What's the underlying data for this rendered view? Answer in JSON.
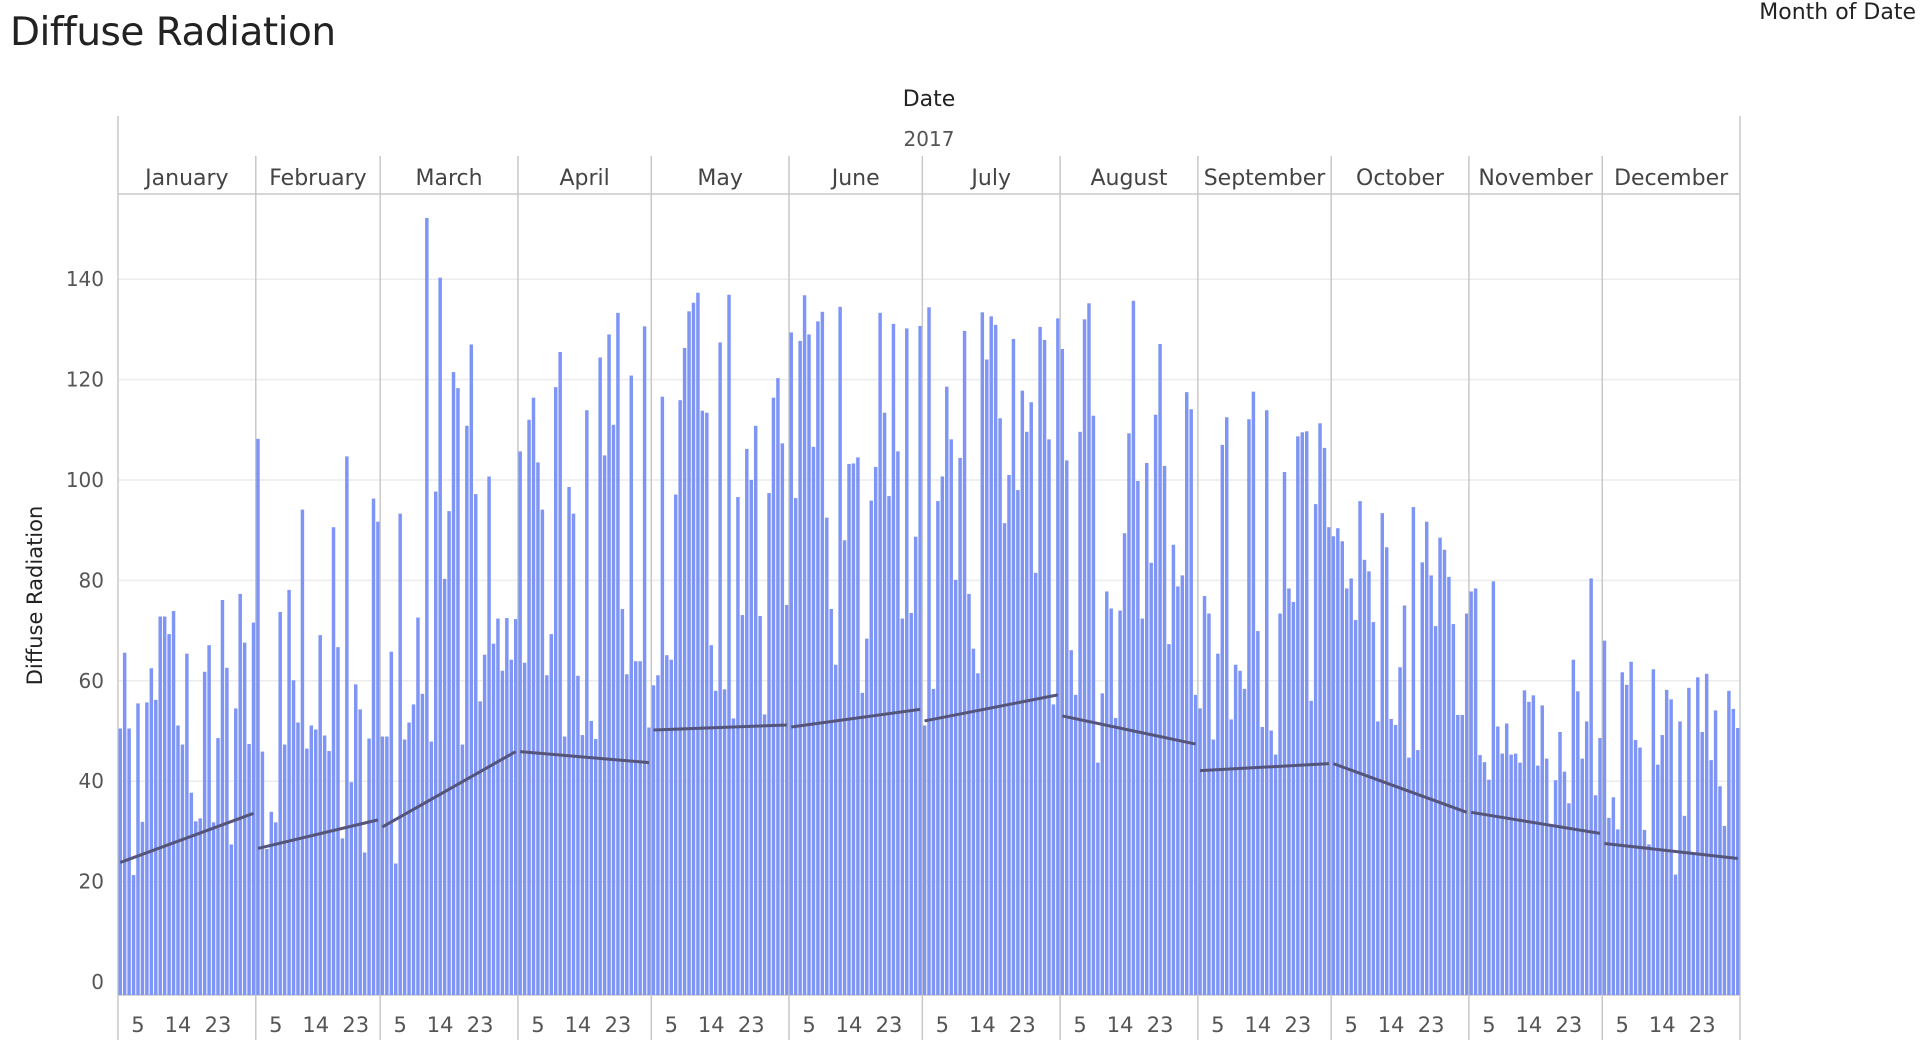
{
  "title": "Diffuse Radiation",
  "legend_title": "Month of Date",
  "chart_data": {
    "type": "bar",
    "title": "Diffuse Radiation",
    "xlabel": "Date",
    "ylabel": "Diffuse Radiation",
    "year_label": "2017",
    "ylim": [
      0,
      155
    ],
    "yticks": [
      0,
      20,
      40,
      60,
      80,
      100,
      120,
      140
    ],
    "xtick_days": [
      5,
      14,
      23
    ],
    "xtick_labels": [
      "5",
      "14",
      "23"
    ],
    "grid": true,
    "bar_color": "#7f95f5",
    "trend_color": "#55557a",
    "months": [
      {
        "name": "January",
        "days": 31,
        "values": [
          50.5,
          65.6,
          50.5,
          21.3,
          55.5,
          31.9,
          55.7,
          62.5,
          56.2,
          72.8,
          72.8,
          69.3,
          73.9,
          51.1,
          47.3,
          65.4,
          37.7,
          32.0,
          32.6,
          61.8,
          67.1,
          31.8,
          48.6,
          76.1,
          62.6,
          27.4,
          54.5,
          77.3,
          67.6,
          47.4,
          71.6
        ],
        "trend": [
          23.8,
          33.6
        ]
      },
      {
        "name": "February",
        "days": 28,
        "values": [
          108.2,
          45.9,
          26.5,
          33.9,
          31.8,
          73.7,
          47.3,
          78.1,
          60.1,
          51.7,
          94.1,
          46.5,
          51.1,
          50.3,
          69.1,
          49.1,
          46.0,
          90.6,
          66.7,
          28.6,
          104.7,
          39.8,
          59.3,
          54.3,
          25.8,
          48.5,
          96.3,
          91.7
        ],
        "trend": [
          26.6,
          32.3
        ]
      },
      {
        "name": "March",
        "days": 31,
        "values": [
          48.9,
          48.9,
          65.8,
          23.6,
          93.3,
          48.3,
          51.7,
          55.3,
          72.6,
          57.4,
          152.2,
          47.9,
          97.7,
          140.3,
          80.3,
          93.8,
          121.5,
          118.3,
          47.3,
          110.8,
          127.0,
          97.2,
          55.9,
          65.2,
          100.7,
          67.4,
          72.4,
          62.0,
          72.5,
          64.2,
          72.3
        ],
        "trend": [
          30.9,
          45.9
        ]
      },
      {
        "name": "April",
        "days": 30,
        "values": [
          105.7,
          63.6,
          112.0,
          116.4,
          103.5,
          94.1,
          61.1,
          69.3,
          118.5,
          125.5,
          48.9,
          98.6,
          93.3,
          61.0,
          49.2,
          113.9,
          52.0,
          48.4,
          124.4,
          104.9,
          129.0,
          111.0,
          133.3,
          74.3,
          61.3,
          120.8,
          63.9,
          63.9,
          130.6,
          50.7
        ],
        "trend": [
          45.9,
          43.7
        ]
      },
      {
        "name": "May",
        "days": 31,
        "values": [
          59.1,
          61.1,
          116.6,
          65.1,
          64.2,
          97.1,
          115.9,
          126.3,
          133.6,
          135.3,
          137.3,
          113.8,
          113.4,
          67.1,
          58.0,
          127.4,
          58.3,
          136.9,
          52.5,
          96.6,
          73.1,
          106.2,
          100.0,
          110.8,
          72.9,
          53.3,
          97.4,
          116.4,
          120.3,
          107.3,
          75.1
        ],
        "trend": [
          50.2,
          51.2
        ]
      },
      {
        "name": "June",
        "days": 30,
        "values": [
          129.4,
          96.4,
          127.7,
          136.8,
          129.0,
          106.6,
          131.6,
          133.5,
          92.5,
          74.3,
          63.2,
          134.5,
          88.0,
          103.2,
          103.3,
          104.5,
          57.6,
          68.4,
          95.9,
          102.6,
          133.3,
          113.4,
          96.8,
          131.1,
          105.7,
          72.4,
          130.2,
          73.5,
          88.7,
          130.7
        ],
        "trend": [
          50.8,
          54.3
        ]
      },
      {
        "name": "July",
        "days": 31,
        "values": [
          51.1,
          134.4,
          58.4,
          95.8,
          100.7,
          118.6,
          108.1,
          80.1,
          104.4,
          129.7,
          77.3,
          66.4,
          61.5,
          133.4,
          124.0,
          132.6,
          130.9,
          112.3,
          91.4,
          101.0,
          128.1,
          98.0,
          117.8,
          109.6,
          115.5,
          81.5,
          130.5,
          127.9,
          108.1,
          55.3,
          132.2
        ],
        "trend": [
          52.0,
          57.2
        ]
      },
      {
        "name": "August",
        "days": 31,
        "values": [
          126.1,
          103.9,
          66.1,
          57.2,
          109.6,
          132.0,
          135.2,
          112.8,
          43.7,
          57.5,
          77.8,
          74.4,
          52.6,
          74.0,
          89.4,
          109.3,
          135.7,
          99.8,
          72.4,
          103.4,
          83.5,
          113.0,
          127.1,
          102.8,
          67.3,
          87.1,
          78.8,
          81.0,
          117.5,
          114.1,
          57.2
        ],
        "trend": [
          53.0,
          47.4
        ]
      },
      {
        "name": "September",
        "days": 30,
        "values": [
          54.5,
          76.9,
          73.4,
          48.3,
          65.4,
          107.0,
          112.5,
          52.3,
          63.2,
          62.0,
          58.4,
          112.1,
          117.6,
          69.9,
          50.8,
          113.9,
          50.1,
          45.3,
          73.4,
          101.6,
          78.4,
          75.7,
          108.7,
          109.5,
          109.7,
          56.0,
          95.2,
          111.3,
          106.4,
          90.6
        ],
        "trend": [
          42.1,
          43.5
        ]
      },
      {
        "name": "October",
        "days": 31,
        "values": [
          88.8,
          90.4,
          87.8,
          78.4,
          80.4,
          72.1,
          95.8,
          84.1,
          81.8,
          71.7,
          51.9,
          93.4,
          86.6,
          52.4,
          51.2,
          62.7,
          75.0,
          44.7,
          94.6,
          46.2,
          83.6,
          91.7,
          81.0,
          70.9,
          88.5,
          86.1,
          80.7,
          71.3,
          53.2,
          53.2,
          73.4
        ],
        "trend": [
          43.5,
          33.8
        ]
      },
      {
        "name": "November",
        "days": 30,
        "values": [
          77.8,
          78.4,
          45.2,
          43.8,
          40.3,
          79.8,
          50.9,
          45.5,
          51.5,
          45.3,
          45.5,
          43.7,
          58.1,
          55.8,
          57.1,
          43.1,
          55.1,
          44.5,
          31.5,
          40.2,
          49.8,
          41.9,
          35.6,
          64.2,
          57.9,
          44.5,
          51.9,
          80.4,
          37.2,
          48.6
        ],
        "trend": [
          33.8,
          29.6
        ]
      },
      {
        "name": "December",
        "days": 31,
        "values": [
          68.0,
          32.7,
          36.8,
          30.4,
          61.7,
          59.2,
          63.8,
          48.2,
          46.7,
          30.3,
          27.4,
          62.3,
          43.3,
          49.2,
          58.2,
          56.3,
          21.4,
          51.9,
          33.1,
          58.6,
          25.5,
          60.7,
          49.8,
          61.4,
          44.2,
          54.1,
          39.0,
          31.1,
          58.0,
          54.4,
          50.6
        ],
        "trend": [
          27.6,
          24.6
        ]
      }
    ]
  }
}
